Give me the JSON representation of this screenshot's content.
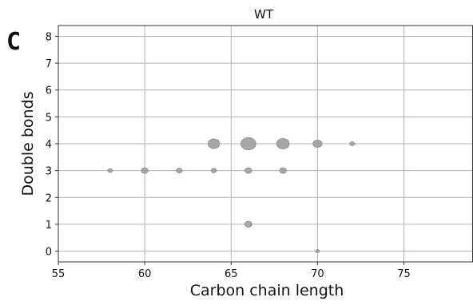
{
  "panel_label": "C",
  "chart_data": {
    "type": "scatter",
    "title": "WT",
    "xlabel": "Carbon chain length",
    "ylabel": "Double bonds",
    "xlim": [
      55,
      79
    ],
    "ylim": [
      -0.4,
      8.4
    ],
    "xticks": [
      55,
      60,
      65,
      70,
      75
    ],
    "yticks": [
      0,
      1,
      2,
      3,
      4,
      5,
      6,
      7,
      8
    ],
    "grid": true,
    "marker_color": "#a6a6a6",
    "marker_edge_color": "#8a8a8a",
    "points": [
      {
        "x": 58,
        "y": 3,
        "size": 1
      },
      {
        "x": 60,
        "y": 3,
        "size": 2
      },
      {
        "x": 62,
        "y": 3,
        "size": 1.5
      },
      {
        "x": 64,
        "y": 3,
        "size": 1.3
      },
      {
        "x": 66,
        "y": 3,
        "size": 2
      },
      {
        "x": 68,
        "y": 3,
        "size": 2
      },
      {
        "x": 64,
        "y": 4,
        "size": 6
      },
      {
        "x": 66,
        "y": 4,
        "size": 10
      },
      {
        "x": 68,
        "y": 4,
        "size": 7
      },
      {
        "x": 70,
        "y": 4,
        "size": 3.5
      },
      {
        "x": 72,
        "y": 4,
        "size": 1
      },
      {
        "x": 66,
        "y": 1,
        "size": 2.2
      },
      {
        "x": 70,
        "y": 0,
        "size": 0.6
      }
    ]
  }
}
